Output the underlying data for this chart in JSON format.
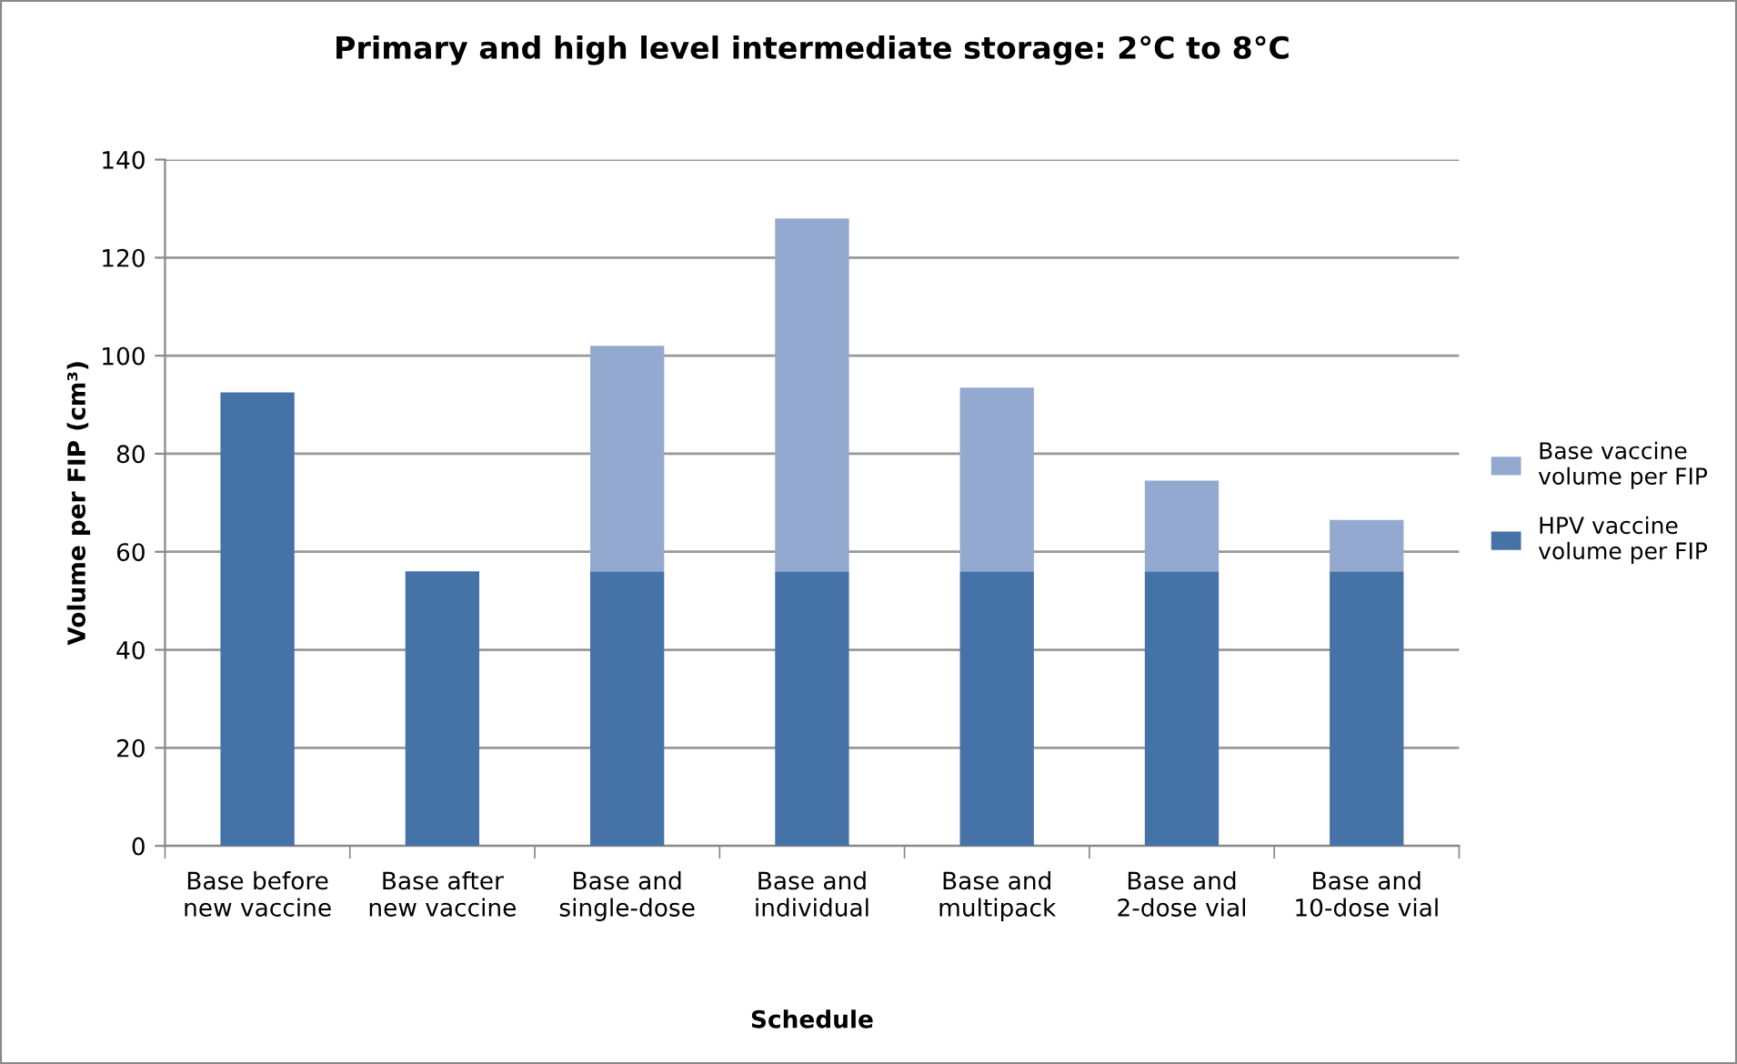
{
  "chart_data": {
    "type": "bar",
    "stacked": true,
    "title": "Primary and high level intermediate storage: 2°C to 8°C",
    "xlabel": "Schedule",
    "ylabel": "Volume per FIP (cm³)",
    "categories": [
      "Base before new vaccine",
      "Base after new vaccine",
      "Base and single-dose",
      "Base and individual",
      "Base and multipack",
      "Base and 2-dose vial",
      "Base and 10-dose vial"
    ],
    "series": [
      {
        "name": "HPV vaccine volume per FIP",
        "color": "#4572a7",
        "values": [
          92.5,
          56,
          56,
          56,
          56,
          56,
          56
        ]
      },
      {
        "name": "Base vaccine volume per FIP",
        "color": "#93a9cf",
        "values": [
          null,
          null,
          46,
          72,
          37.5,
          18.5,
          10.5
        ]
      }
    ],
    "ylim": [
      0,
      140
    ],
    "yticks": [
      0,
      20,
      40,
      60,
      80,
      100,
      120,
      140
    ],
    "grid": "y",
    "legend": "right"
  }
}
